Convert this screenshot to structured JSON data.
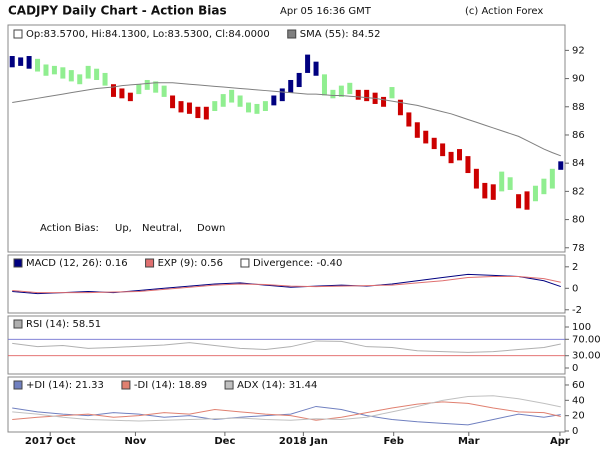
{
  "header": {
    "title": "CADJPY Daily Chart - Action Bias",
    "timestamp": "Apr 05 16:36 GMT",
    "copyright": "(c) Action Forex"
  },
  "chart_data": [
    {
      "type": "ohlc",
      "ohlc": {
        "name": "Op:83.5700, Hi:84.1300, Lo:83.5300, Cl:84.0000",
        "color": "#ffffff"
      },
      "bias_legend": {
        "label": "Action Bias:",
        "items": [
          {
            "name": "Up,",
            "color": "#000080"
          },
          {
            "name": "Neutral,",
            "color": "#90ee90"
          },
          {
            "name": "Down",
            "color": "#cc0000"
          }
        ]
      },
      "high": [
        91.6,
        91.5,
        91.6,
        91.4,
        91.0,
        90.9,
        90.8,
        90.6,
        90.3,
        90.9,
        90.7,
        90.4,
        89.6,
        89.3,
        89.0,
        89.6,
        89.9,
        89.8,
        89.5,
        88.8,
        88.4,
        88.3,
        88.0,
        88.0,
        88.4,
        88.9,
        89.2,
        88.8,
        88.3,
        88.2,
        88.4,
        88.8,
        89.3,
        89.9,
        90.4,
        91.7,
        91.2,
        90.3,
        89.2,
        89.5,
        89.7,
        89.2,
        89.2,
        89.0,
        88.7,
        89.4,
        88.5,
        87.6,
        86.9,
        86.3,
        85.8,
        85.4,
        84.8,
        85.0,
        84.5,
        83.6,
        82.6,
        82.5,
        83.4,
        83.0,
        81.8,
        82.0,
        82.4,
        82.9,
        83.6,
        84.13
      ],
      "low": [
        90.8,
        90.9,
        90.7,
        90.5,
        90.2,
        90.3,
        90.0,
        89.8,
        89.6,
        90.0,
        89.9,
        89.5,
        88.7,
        88.6,
        88.4,
        88.9,
        89.2,
        89.0,
        88.7,
        87.9,
        87.6,
        87.5,
        87.2,
        87.1,
        87.7,
        88.0,
        88.3,
        88.0,
        87.6,
        87.5,
        87.7,
        88.1,
        88.4,
        89.0,
        89.4,
        90.4,
        90.2,
        88.8,
        88.6,
        88.7,
        88.9,
        88.5,
        88.4,
        88.2,
        88.0,
        88.6,
        87.4,
        86.6,
        85.8,
        85.4,
        85.0,
        84.5,
        84.0,
        84.2,
        83.3,
        82.2,
        81.5,
        81.4,
        82.0,
        82.1,
        80.8,
        80.7,
        81.3,
        81.8,
        82.2,
        83.53
      ],
      "bias": [
        0,
        0,
        0,
        1,
        1,
        1,
        1,
        1,
        1,
        1,
        1,
        1,
        2,
        2,
        2,
        1,
        1,
        1,
        1,
        2,
        2,
        2,
        2,
        2,
        1,
        1,
        1,
        1,
        1,
        1,
        1,
        0,
        0,
        0,
        0,
        0,
        0,
        1,
        1,
        1,
        1,
        2,
        2,
        2,
        2,
        1,
        2,
        2,
        2,
        2,
        2,
        2,
        2,
        2,
        2,
        2,
        2,
        2,
        1,
        1,
        2,
        2,
        1,
        1,
        1,
        0
      ],
      "sma": {
        "name": "SMA (55): 84.52",
        "color": "#808080",
        "values": [
          88.3,
          88.4,
          88.5,
          88.6,
          88.7,
          88.8,
          88.9,
          89.0,
          89.1,
          89.2,
          89.3,
          89.35,
          89.4,
          89.5,
          89.55,
          89.6,
          89.65,
          89.7,
          89.7,
          89.7,
          89.65,
          89.6,
          89.55,
          89.5,
          89.45,
          89.4,
          89.35,
          89.3,
          89.25,
          89.2,
          89.15,
          89.1,
          89.05,
          89.0,
          88.95,
          88.9,
          88.9,
          88.85,
          88.8,
          88.8,
          88.75,
          88.7,
          88.65,
          88.6,
          88.5,
          88.4,
          88.3,
          88.2,
          88.1,
          87.95,
          87.8,
          87.65,
          87.5,
          87.3,
          87.1,
          86.9,
          86.7,
          86.5,
          86.3,
          86.1,
          85.9,
          85.6,
          85.3,
          85.0,
          84.75,
          84.52
        ]
      },
      "ylim": [
        77.7,
        93.8
      ],
      "yticks": [
        78,
        80,
        82,
        84,
        86,
        88,
        90,
        92
      ],
      "xlim": [
        -0.5,
        65.5
      ],
      "xticks": [
        {
          "value": 4.5,
          "label": "2017 Oct"
        },
        {
          "value": 14.6,
          "label": "Nov"
        },
        {
          "value": 25.2,
          "label": "Dec"
        },
        {
          "value": 34.5,
          "label": "2018 Jan"
        },
        {
          "value": 45.2,
          "label": "Feb"
        },
        {
          "value": 54.1,
          "label": "Mar"
        },
        {
          "value": 64.9,
          "label": "Apr"
        }
      ]
    },
    {
      "type": "line",
      "x": [
        0,
        3,
        6,
        9,
        12,
        15,
        18,
        21,
        24,
        27,
        30,
        33,
        36,
        39,
        42,
        45,
        48,
        51,
        54,
        57,
        60,
        63,
        65
      ],
      "series": [
        {
          "name": "MACD (12, 26): 0.16",
          "color": "#000080",
          "values": [
            -0.3,
            -0.5,
            -0.4,
            -0.3,
            -0.4,
            -0.2,
            0.0,
            0.2,
            0.4,
            0.5,
            0.3,
            0.1,
            0.2,
            0.3,
            0.2,
            0.4,
            0.7,
            1.0,
            1.3,
            1.2,
            1.1,
            0.7,
            0.16
          ]
        },
        {
          "name": "EXP (9): 0.56",
          "color": "#e07070",
          "values": [
            -0.2,
            -0.4,
            -0.4,
            -0.4,
            -0.35,
            -0.3,
            -0.1,
            0.1,
            0.3,
            0.4,
            0.35,
            0.2,
            0.15,
            0.2,
            0.25,
            0.3,
            0.5,
            0.7,
            1.0,
            1.1,
            1.1,
            0.9,
            0.56
          ]
        }
      ],
      "extra_legend": {
        "name": "Divergence: -0.40",
        "color": "#ffffff"
      },
      "ylim": [
        -2.3,
        3.1
      ],
      "yticks": [
        -2,
        0,
        2
      ]
    },
    {
      "type": "line",
      "x": [
        0,
        3,
        6,
        9,
        12,
        15,
        18,
        21,
        24,
        27,
        30,
        33,
        36,
        39,
        42,
        45,
        48,
        51,
        54,
        57,
        60,
        63,
        65
      ],
      "series": [
        {
          "name": "RSI (14): 58.51",
          "color": "#b0b0b0",
          "values": [
            60,
            52,
            55,
            48,
            50,
            53,
            56,
            62,
            55,
            48,
            45,
            52,
            66,
            65,
            52,
            50,
            42,
            40,
            38,
            40,
            45,
            50,
            58.51
          ]
        }
      ],
      "ylim": [
        -14.6,
        126.8
      ],
      "yticks": [
        0,
        {
          "value": 30,
          "label": "30.00",
          "color": "#e06060"
        },
        {
          "value": 70,
          "label": "70.00",
          "color": "#7070d0"
        },
        100
      ]
    },
    {
      "type": "line",
      "x": [
        0,
        3,
        6,
        9,
        12,
        15,
        18,
        21,
        24,
        27,
        30,
        33,
        36,
        39,
        42,
        45,
        48,
        51,
        54,
        57,
        60,
        63,
        65
      ],
      "series": [
        {
          "name": "+DI (14): 21.33",
          "color": "#7080c0",
          "values": [
            30,
            25,
            22,
            20,
            24,
            22,
            18,
            20,
            15,
            18,
            20,
            22,
            32,
            28,
            20,
            15,
            12,
            10,
            8,
            15,
            22,
            18,
            21.33
          ]
        },
        {
          "name": "-DI (14): 18.89",
          "color": "#e08070",
          "values": [
            15,
            18,
            20,
            22,
            18,
            20,
            24,
            22,
            28,
            25,
            22,
            20,
            14,
            18,
            24,
            30,
            35,
            38,
            36,
            30,
            25,
            24,
            18.89
          ]
        },
        {
          "name": "ADX (14): 31.44",
          "color": "#c0c0c0",
          "values": [
            25,
            22,
            18,
            15,
            14,
            13,
            14,
            15,
            16,
            17,
            15,
            14,
            16,
            15,
            18,
            25,
            32,
            40,
            45,
            46,
            42,
            36,
            31.44
          ]
        }
      ],
      "ylim": [
        -1.3,
        70.4
      ],
      "yticks": [
        0,
        20,
        40,
        60
      ]
    }
  ]
}
